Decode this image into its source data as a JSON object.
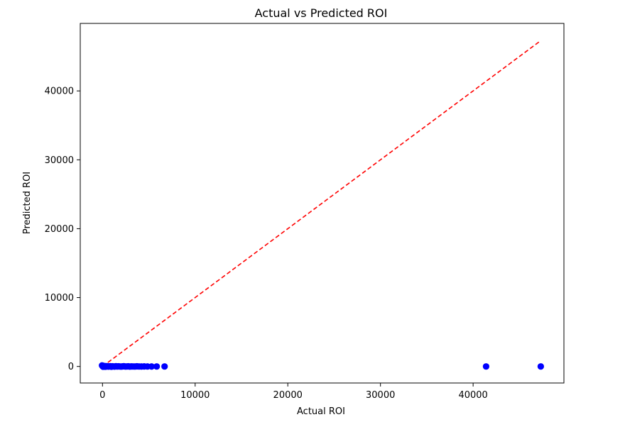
{
  "chart_data": {
    "type": "scatter",
    "title": "Actual vs Predicted ROI",
    "xlabel": "Actual ROI",
    "ylabel": "Predicted ROI",
    "xlim": [
      -2400,
      49800
    ],
    "ylim": [
      -2400,
      49800
    ],
    "x_ticks": [
      0,
      10000,
      20000,
      30000,
      40000
    ],
    "y_ticks": [
      0,
      10000,
      20000,
      30000,
      40000
    ],
    "x_tick_labels": [
      "0",
      "10000",
      "20000",
      "30000",
      "40000"
    ],
    "y_tick_labels": [
      "0",
      "10000",
      "20000",
      "30000",
      "40000"
    ],
    "grid": false,
    "colors": {
      "points": "#0000ff",
      "reference_line": "#ff0000"
    },
    "series": [
      {
        "type": "scatter",
        "x": [
          -50,
          0,
          60,
          120,
          200,
          280,
          360,
          450,
          540,
          640,
          740,
          850,
          960,
          1080,
          1200,
          1320,
          1450,
          1580,
          1720,
          1860,
          2000,
          2150,
          2300,
          2460,
          2620,
          2780,
          2950,
          3120,
          3300,
          3500,
          3720,
          3950,
          4200,
          4500,
          4850,
          5300,
          5850,
          6700,
          41400,
          47300
        ],
        "y": [
          150,
          60,
          -30,
          90,
          20,
          -40,
          50,
          -10,
          30,
          -20,
          10,
          40,
          -30,
          20,
          0,
          -20,
          30,
          -10,
          20,
          0,
          -20,
          10,
          30,
          -10,
          0,
          20,
          -20,
          10,
          0,
          -10,
          20,
          0,
          -10,
          10,
          0,
          -10,
          0,
          0,
          0,
          0
        ]
      },
      {
        "type": "line",
        "style": "dashed",
        "x": [
          0,
          47300
        ],
        "y": [
          0,
          47300
        ]
      }
    ]
  }
}
